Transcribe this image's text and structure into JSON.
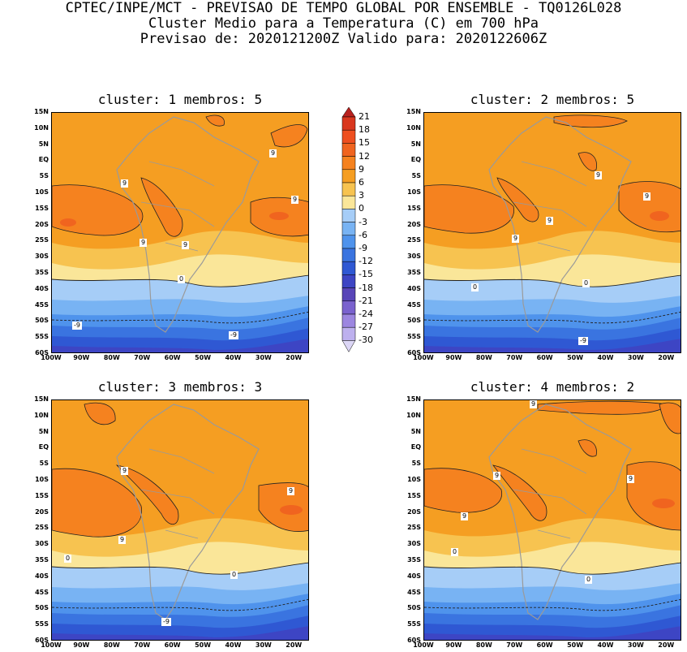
{
  "header": {
    "line1": "CPTEC/INPE/MCT - PREVISAO DE TEMPO GLOBAL POR ENSEMBLE - TQ0126L028",
    "line2": "Cluster Medio para a Temperatura (C) em 700 hPa",
    "line3": "Previsao de: 2020121200Z    Valido para: 2020122606Z"
  },
  "panels": [
    {
      "title": "cluster: 1   membros: 5"
    },
    {
      "title": "cluster: 2   membros: 5"
    },
    {
      "title": "cluster: 3   membros: 3"
    },
    {
      "title": "cluster: 4   membros: 2"
    }
  ],
  "lat_labels": [
    "15N",
    "10N",
    "5N",
    "EQ",
    "5S",
    "10S",
    "15S",
    "20S",
    "25S",
    "30S",
    "35S",
    "40S",
    "45S",
    "50S",
    "55S",
    "60S"
  ],
  "lon_labels": [
    "100W",
    "90W",
    "80W",
    "70W",
    "60W",
    "50W",
    "40W",
    "30W",
    "20W"
  ],
  "colorbar": {
    "levels": [
      "21",
      "18",
      "15",
      "12",
      "9",
      "6",
      "3",
      "0",
      "-3",
      "-6",
      "-9",
      "-12",
      "-15",
      "-18",
      "-21",
      "-24",
      "-27",
      "-30"
    ],
    "colors": [
      "#B8211E",
      "#D9371E",
      "#EE4F1F",
      "#F0641F",
      "#F5821F",
      "#F59E22",
      "#F7C350",
      "#FAE699",
      "#A6CDF7",
      "#78B3F3",
      "#4F93EC",
      "#3A74E0",
      "#2F58D3",
      "#3D45C4",
      "#5845B8",
      "#7A62CE",
      "#9C86E0",
      "#BDB0EE",
      "#DCD6F6"
    ]
  },
  "contour_labels": {
    "p1": [
      "9",
      "9",
      "9",
      "9",
      "9",
      "0",
      "-9",
      "-9"
    ],
    "p2": [
      "9",
      "9",
      "9",
      "9",
      "0",
      "0",
      "-9"
    ],
    "p3": [
      "9",
      "9",
      "9",
      "0",
      "0",
      "-9"
    ],
    "p4": [
      "9",
      "9",
      "9",
      "9",
      "0",
      "0"
    ]
  }
}
